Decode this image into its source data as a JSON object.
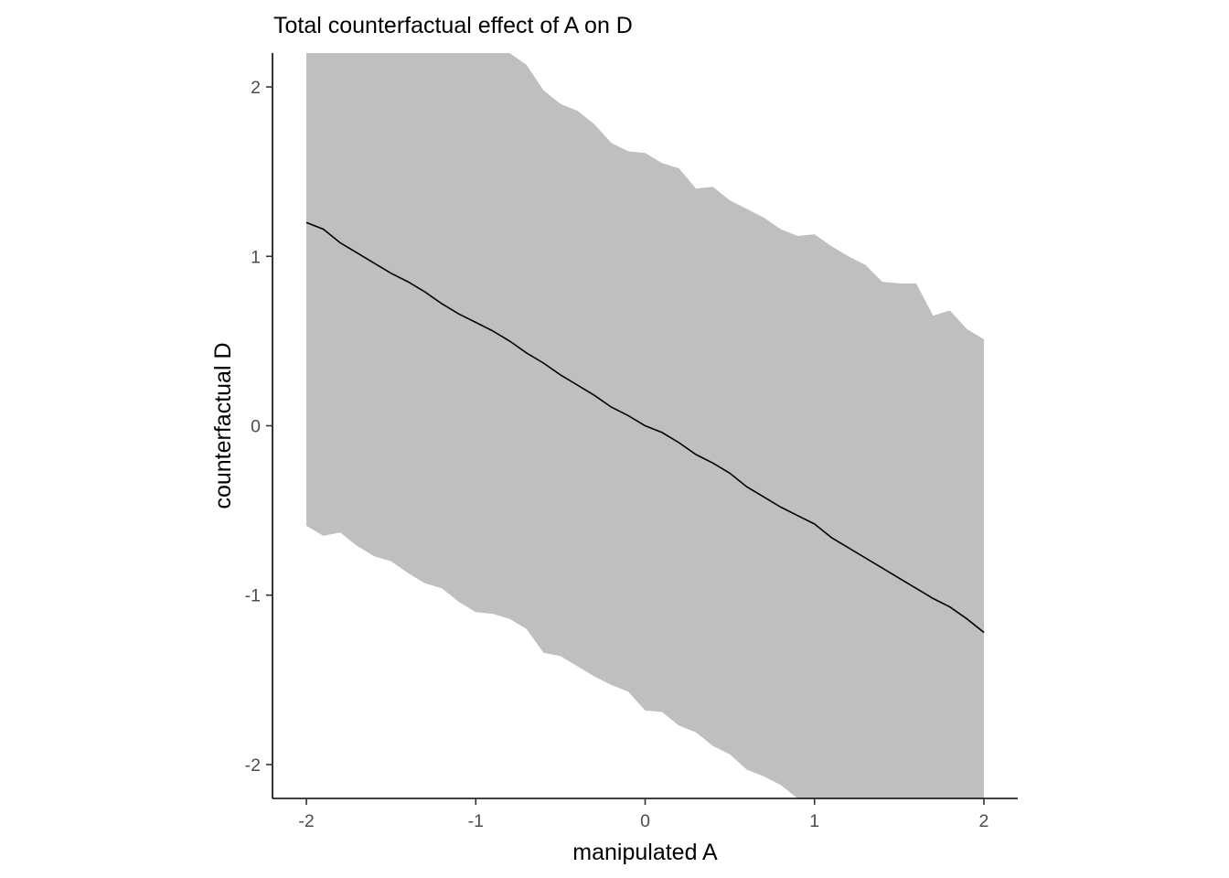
{
  "chart_data": {
    "type": "area",
    "title": "Total counterfactual effect of A on D",
    "xlabel": "manipulated A",
    "ylabel": "counterfactual D",
    "xlim": [
      -2.2,
      2.2
    ],
    "ylim": [
      -2.2,
      2.2
    ],
    "xticks": [
      -2,
      -1,
      0,
      1,
      2
    ],
    "yticks": [
      -2,
      -1,
      0,
      1,
      2
    ],
    "xtick_labels": [
      "-2",
      "-1",
      "0",
      "1",
      "2"
    ],
    "ytick_labels": [
      "-2",
      "-1",
      "0",
      "1",
      "2"
    ],
    "grid": false,
    "legend": "none",
    "colors": {
      "band": "#bfbfbf",
      "line": "#000000",
      "axis": "#000000"
    },
    "series": [
      {
        "kind": "ribbon",
        "x": [
          -2,
          -1.9,
          -1.8,
          -1.7,
          -1.6,
          -1.5,
          -1.4,
          -1.3,
          -1.2,
          -1.1,
          -1.0,
          -0.9,
          -0.8,
          -0.7,
          -0.6,
          -0.5,
          -0.4,
          -0.3,
          -0.2,
          -0.1,
          0.0,
          0.1,
          0.2,
          0.3,
          0.4,
          0.5,
          0.6,
          0.7,
          0.8,
          0.9,
          1.0,
          1.1,
          1.2,
          1.3,
          1.4,
          1.5,
          1.6,
          1.7,
          1.8,
          1.9,
          2.0
        ],
        "upper": [
          2.25,
          2.25,
          2.25,
          2.25,
          2.25,
          2.25,
          2.25,
          2.25,
          2.25,
          2.25,
          2.25,
          2.25,
          2.2,
          2.13,
          1.98,
          1.9,
          1.86,
          1.78,
          1.67,
          1.62,
          1.61,
          1.55,
          1.52,
          1.4,
          1.41,
          1.33,
          1.28,
          1.23,
          1.16,
          1.12,
          1.13,
          1.06,
          1.0,
          0.95,
          0.85,
          0.84,
          0.84,
          0.65,
          0.68,
          0.57,
          0.51
        ],
        "lower": [
          -0.59,
          -0.65,
          -0.63,
          -0.71,
          -0.77,
          -0.8,
          -0.87,
          -0.93,
          -0.96,
          -1.04,
          -1.1,
          -1.11,
          -1.14,
          -1.2,
          -1.34,
          -1.36,
          -1.42,
          -1.48,
          -1.53,
          -1.57,
          -1.68,
          -1.69,
          -1.77,
          -1.81,
          -1.89,
          -1.94,
          -2.03,
          -2.07,
          -2.12,
          -2.2,
          -2.25,
          -2.25,
          -2.25,
          -2.25,
          -2.25,
          -2.25,
          -2.25,
          -2.25,
          -2.25,
          -2.25,
          -2.25
        ]
      },
      {
        "kind": "line",
        "x": [
          -2,
          -1.9,
          -1.8,
          -1.7,
          -1.6,
          -1.5,
          -1.4,
          -1.3,
          -1.2,
          -1.1,
          -1.0,
          -0.9,
          -0.8,
          -0.7,
          -0.6,
          -0.5,
          -0.4,
          -0.3,
          -0.2,
          -0.1,
          0.0,
          0.1,
          0.2,
          0.3,
          0.4,
          0.5,
          0.6,
          0.7,
          0.8,
          0.9,
          1.0,
          1.1,
          1.2,
          1.3,
          1.4,
          1.5,
          1.6,
          1.7,
          1.8,
          1.9,
          2.0
        ],
        "y": [
          1.2,
          1.16,
          1.08,
          1.02,
          0.96,
          0.9,
          0.85,
          0.79,
          0.72,
          0.66,
          0.61,
          0.56,
          0.5,
          0.43,
          0.37,
          0.3,
          0.24,
          0.18,
          0.11,
          0.06,
          0.0,
          -0.04,
          -0.1,
          -0.17,
          -0.22,
          -0.28,
          -0.36,
          -0.42,
          -0.48,
          -0.53,
          -0.58,
          -0.66,
          -0.72,
          -0.78,
          -0.84,
          -0.9,
          -0.96,
          -1.02,
          -1.07,
          -1.14,
          -1.22
        ]
      }
    ]
  }
}
